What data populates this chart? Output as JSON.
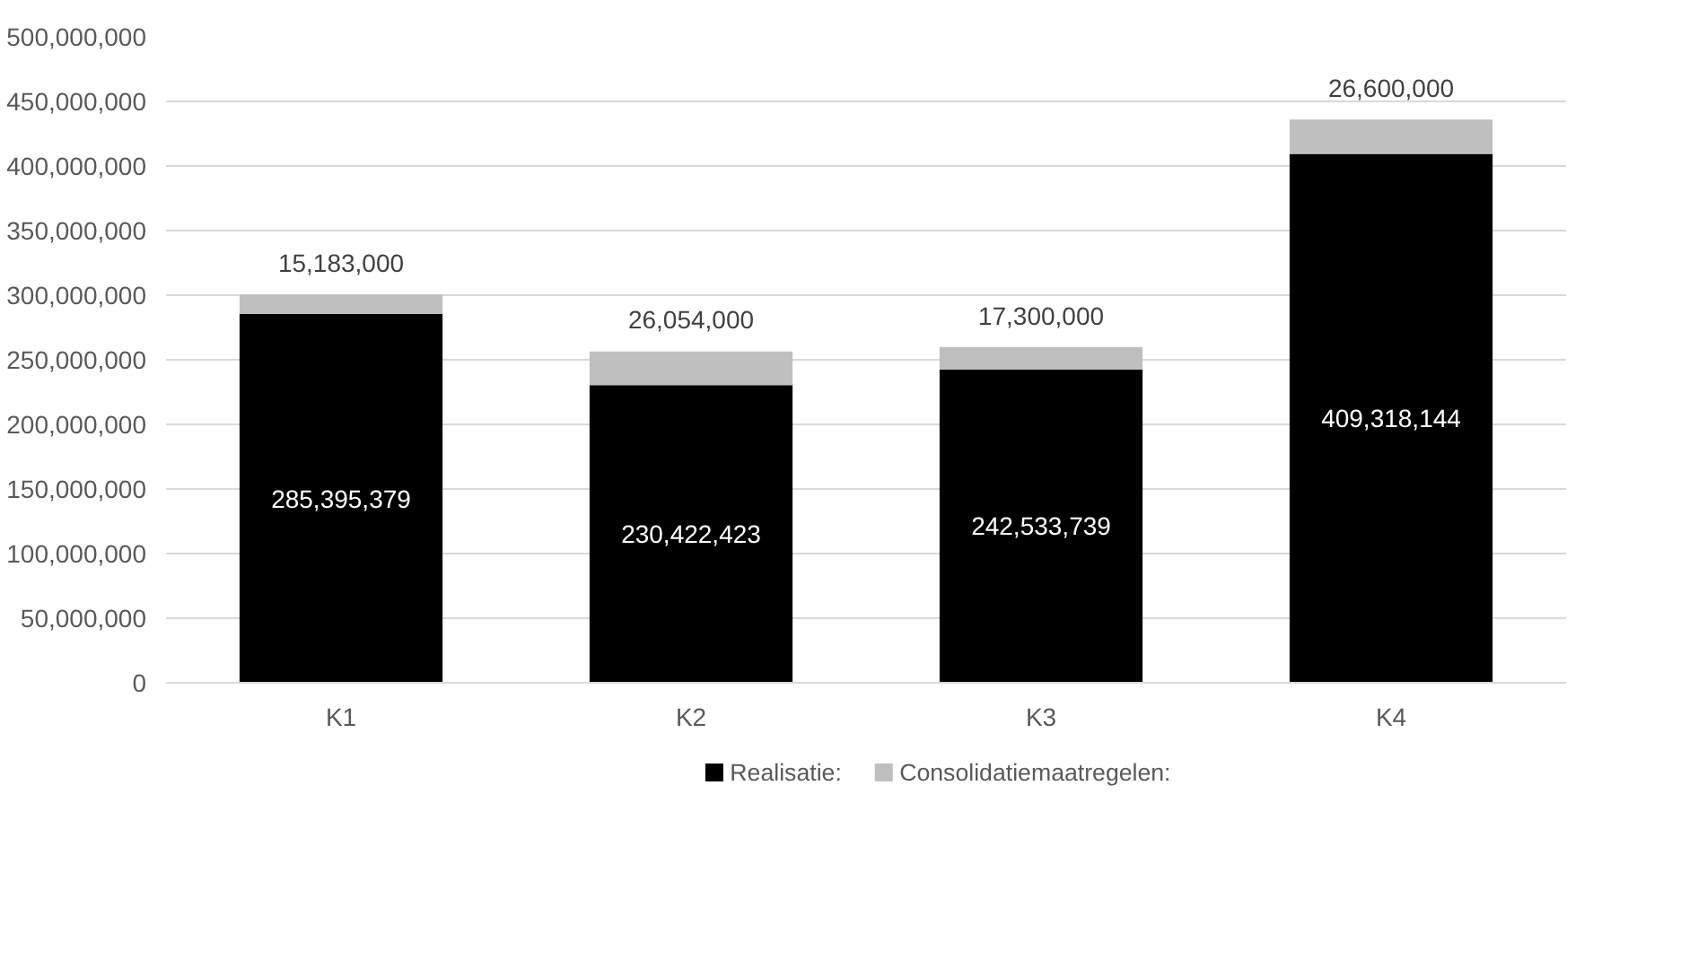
{
  "chart_data": {
    "type": "bar",
    "stacked": true,
    "categories": [
      "K1",
      "K2",
      "K3",
      "K4"
    ],
    "series": [
      {
        "name": "Realisatie:",
        "color": "#000000",
        "values": [
          285395379,
          230422423,
          242533739,
          409318144
        ],
        "value_labels": [
          "285,395,379",
          "230,422,423",
          "242,533,739",
          "409,318,144"
        ]
      },
      {
        "name": "Consolidatiemaatregelen:",
        "color": "#bfbfbf",
        "values": [
          15183000,
          26054000,
          17300000,
          26600000
        ],
        "value_labels": [
          "15,183,000",
          "26,054,000",
          "17,300,000",
          "26,600,000"
        ]
      }
    ],
    "ylim": [
      0,
      500000000
    ],
    "yticks": [
      {
        "value": 0,
        "label": "0"
      },
      {
        "value": 50000000,
        "label": "50,000,000"
      },
      {
        "value": 100000000,
        "label": "100,000,000"
      },
      {
        "value": 150000000,
        "label": "150,000,000"
      },
      {
        "value": 200000000,
        "label": "200,000,000"
      },
      {
        "value": 250000000,
        "label": "250,000,000"
      },
      {
        "value": 300000000,
        "label": "300,000,000"
      },
      {
        "value": 350000000,
        "label": "350,000,000"
      },
      {
        "value": 400000000,
        "label": "400,000,000"
      },
      {
        "value": 450000000,
        "label": "450,000,000"
      },
      {
        "value": 500000000,
        "label": "500,000,000"
      }
    ],
    "grid": "y",
    "legend": "bottom"
  }
}
